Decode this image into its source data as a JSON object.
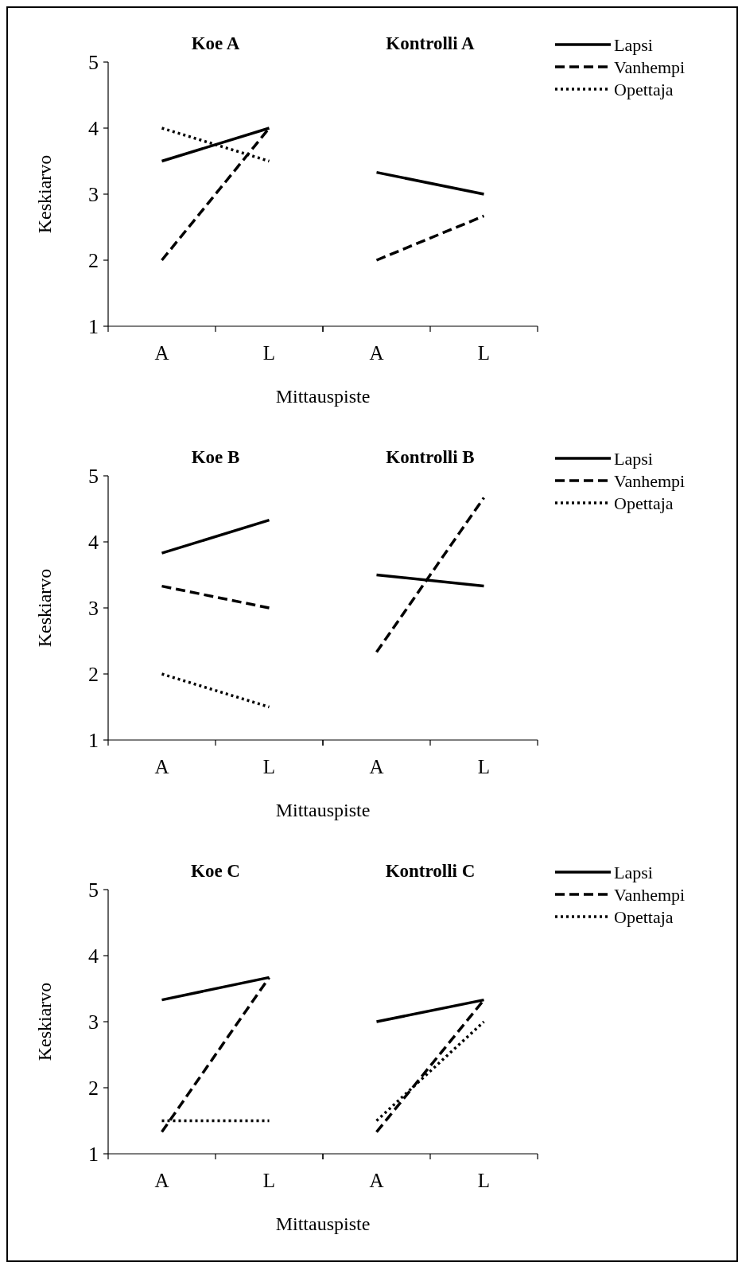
{
  "chart_data": [
    {
      "type": "line",
      "title": "Koe A",
      "ylabel": "Keskiarvo",
      "xlabel": "Mittauspiste",
      "categories": [
        "A",
        "L"
      ],
      "ylim": [
        1,
        5
      ],
      "yticks": [
        1,
        2,
        3,
        4,
        5
      ],
      "legend": "right",
      "series": [
        {
          "name": "Lapsi",
          "color": "#000000",
          "line_style": "solid",
          "values": [
            3.5,
            4
          ]
        },
        {
          "name": "Vanhempi",
          "color": "#000000",
          "line_style": "dashed",
          "values": [
            2,
            4
          ]
        },
        {
          "name": "Opettaja",
          "color": "#000000",
          "line_style": "dotted",
          "values": [
            4,
            3.5
          ]
        }
      ]
    },
    {
      "type": "line",
      "title": "Kontrolli A",
      "categories": [
        "A",
        "L"
      ],
      "ylim": [
        1,
        5
      ],
      "tick_labels": "x",
      "series": [
        {
          "color": "#000000",
          "line_style": "solid",
          "values": [
            3.33,
            3
          ]
        },
        {
          "color": "#000000",
          "line_style": "dashed",
          "values": [
            2,
            2.67
          ]
        }
      ]
    },
    {
      "type": "line",
      "title": "Koe B",
      "ylabel": "Keskiarvo",
      "xlabel": "Mittauspiste",
      "categories": [
        "A",
        "L"
      ],
      "ylim": [
        1,
        5
      ],
      "yticks": [
        1,
        2,
        3,
        4,
        5
      ],
      "legend": "right",
      "series": [
        {
          "name": "Lapsi",
          "color": "#000000",
          "line_style": "solid",
          "values": [
            3.83,
            4.33
          ]
        },
        {
          "name": "Vanhempi",
          "color": "#000000",
          "line_style": "dashed",
          "values": [
            3.33,
            3
          ]
        },
        {
          "name": "Opettaja",
          "color": "#000000",
          "line_style": "dotted",
          "values": [
            2,
            1.5
          ]
        }
      ]
    },
    {
      "type": "line",
      "title": "Kontrolli B",
      "categories": [
        "A",
        "L"
      ],
      "ylim": [
        1,
        5
      ],
      "tick_labels": "x",
      "series": [
        {
          "color": "#000000",
          "line_style": "solid",
          "values": [
            3.5,
            3.33
          ]
        },
        {
          "color": "#000000",
          "line_style": "dashed",
          "values": [
            2.33,
            4.67
          ]
        }
      ]
    },
    {
      "type": "line",
      "title": "Koe C",
      "ylabel": "Keskiarvo",
      "xlabel": "Mittauspiste",
      "categories": [
        "A",
        "L"
      ],
      "ylim": [
        1,
        5
      ],
      "yticks": [
        1,
        2,
        3,
        4,
        5
      ],
      "legend": "right",
      "series": [
        {
          "name": "Lapsi",
          "color": "#000000",
          "line_style": "solid",
          "values": [
            3.33,
            3.67
          ]
        },
        {
          "name": "Vanhempi",
          "color": "#000000",
          "line_style": "dashed",
          "values": [
            1.33,
            3.67
          ]
        },
        {
          "name": "Opettaja",
          "color": "#000000",
          "line_style": "dotted",
          "values": [
            1.5,
            1.5
          ]
        }
      ]
    },
    {
      "type": "line",
      "title": "Kontrolli C",
      "categories": [
        "A",
        "L"
      ],
      "ylim": [
        1,
        5
      ],
      "tick_labels": "x",
      "series": [
        {
          "color": "#000000",
          "line_style": "solid",
          "values": [
            3,
            3.33
          ]
        },
        {
          "color": "#000000",
          "line_style": "dashed",
          "values": [
            1.33,
            3.33
          ]
        },
        {
          "color": "#000000",
          "line_style": "dotted",
          "values": [
            1.5,
            3
          ]
        }
      ]
    }
  ]
}
